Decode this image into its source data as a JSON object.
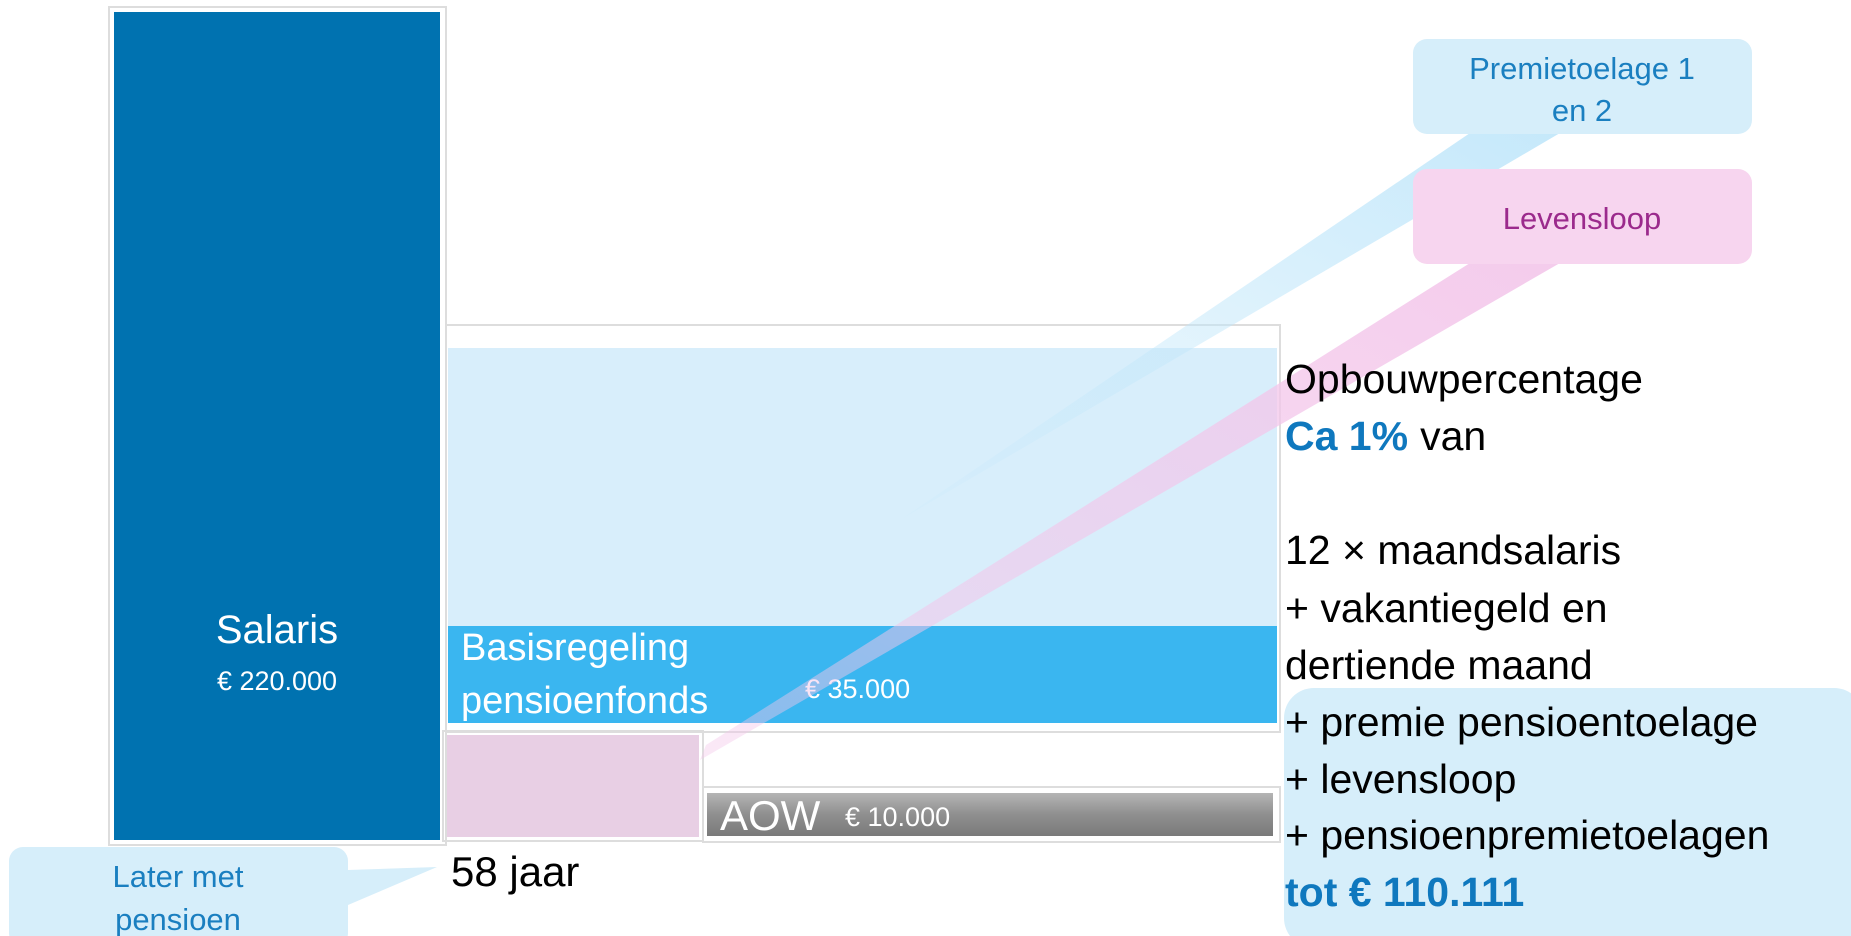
{
  "blocks": {
    "salaris": {
      "label": "Salaris",
      "amount": "€ 220.000"
    },
    "basisregeling": {
      "label": [
        "Basisregeling",
        "pensioenfonds"
      ],
      "amount": "€ 35.000"
    },
    "aow": {
      "label": "AOW",
      "amount": "€ 10.000"
    }
  },
  "callouts": {
    "premietoelage": [
      "Premietoelage 1",
      "en 2"
    ],
    "levensloop": "Levensloop",
    "later": [
      "Later met",
      "pensioen"
    ]
  },
  "age_label": "58 jaar",
  "explanation": {
    "heading": "Opbouwpercentage",
    "highlight": "Ca 1%",
    "after": "van",
    "lines": [
      "12 × maandsalaris",
      "+ vakantiegeld en",
      "dertiende maand",
      "+ premie pensioentoelage",
      "+ levensloop",
      "+ pensioenpremietoelagen"
    ],
    "total": "tot € 110.111"
  }
}
